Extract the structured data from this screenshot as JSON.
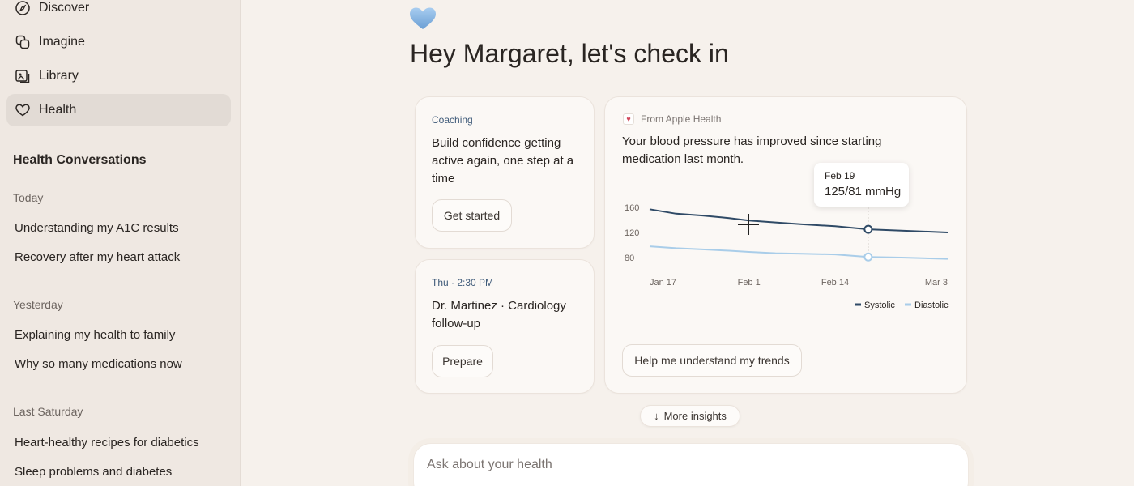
{
  "sidebar": {
    "nav": [
      {
        "label": "Discover",
        "icon": "compass-icon"
      },
      {
        "label": "Imagine",
        "icon": "imagine-icon"
      },
      {
        "label": "Library",
        "icon": "library-icon"
      },
      {
        "label": "Health",
        "icon": "heart-icon",
        "active": true
      }
    ],
    "section_title": "Health Conversations",
    "groups": [
      {
        "label": "Today",
        "items": [
          "Understanding my A1C results",
          "Recovery after my heart attack"
        ]
      },
      {
        "label": "Yesterday",
        "items": [
          "Explaining my health to family",
          "Why so many medications now"
        ]
      },
      {
        "label": "Last Saturday",
        "items": [
          "Heart-healthy recipes for diabetics",
          "Sleep problems and diabetes"
        ]
      }
    ]
  },
  "main": {
    "greeting": "Hey Margaret, let's check in",
    "coaching_card": {
      "label": "Coaching",
      "text": "Build confidence getting active again, one step at a time",
      "button": "Get started"
    },
    "appointment_card": {
      "label": "Thu · 2:30 PM",
      "text": "Dr. Martinez · Cardiology follow-up",
      "button": "Prepare"
    },
    "health_card": {
      "source": "From Apple Health",
      "text": "Your blood pressure has improved since starting medication last month.",
      "tooltip_date": "Feb 19",
      "tooltip_value": "125/81 mmHg",
      "button": "Help me understand my trends"
    },
    "more_insights": "More insights",
    "ask_placeholder": "Ask about your health"
  },
  "colors": {
    "systolic": "#2f4a66",
    "diastolic": "#a9cde9",
    "accent_label": "#3e5a79",
    "heart_emoji": "#7fb0de"
  },
  "chart_data": {
    "type": "line",
    "x_ticks": [
      "Jan 17",
      "Feb 1",
      "Feb 14",
      "Mar 3"
    ],
    "y_ticks": [
      160,
      120,
      80
    ],
    "ylim": [
      60,
      170
    ],
    "legend": "bottom-right",
    "series": [
      {
        "name": "Systolic",
        "x": [
          "Jan 17",
          "Jan 21",
          "Jan 25",
          "Jan 29",
          "Feb 1",
          "Feb 5",
          "Feb 9",
          "Feb 14",
          "Feb 19",
          "Feb 24",
          "Mar 3"
        ],
        "values": [
          157,
          150,
          147,
          143,
          139,
          136,
          133,
          130,
          125,
          123,
          120
        ]
      },
      {
        "name": "Diastolic",
        "x": [
          "Jan 17",
          "Jan 21",
          "Jan 25",
          "Jan 29",
          "Feb 1",
          "Feb 5",
          "Feb 9",
          "Feb 14",
          "Feb 19",
          "Feb 24",
          "Mar 3"
        ],
        "values": [
          98,
          95,
          93,
          91,
          89,
          87,
          86,
          85,
          81,
          80,
          78
        ]
      }
    ],
    "highlight": {
      "x": "Feb 19",
      "systolic": 125,
      "diastolic": 81
    }
  }
}
